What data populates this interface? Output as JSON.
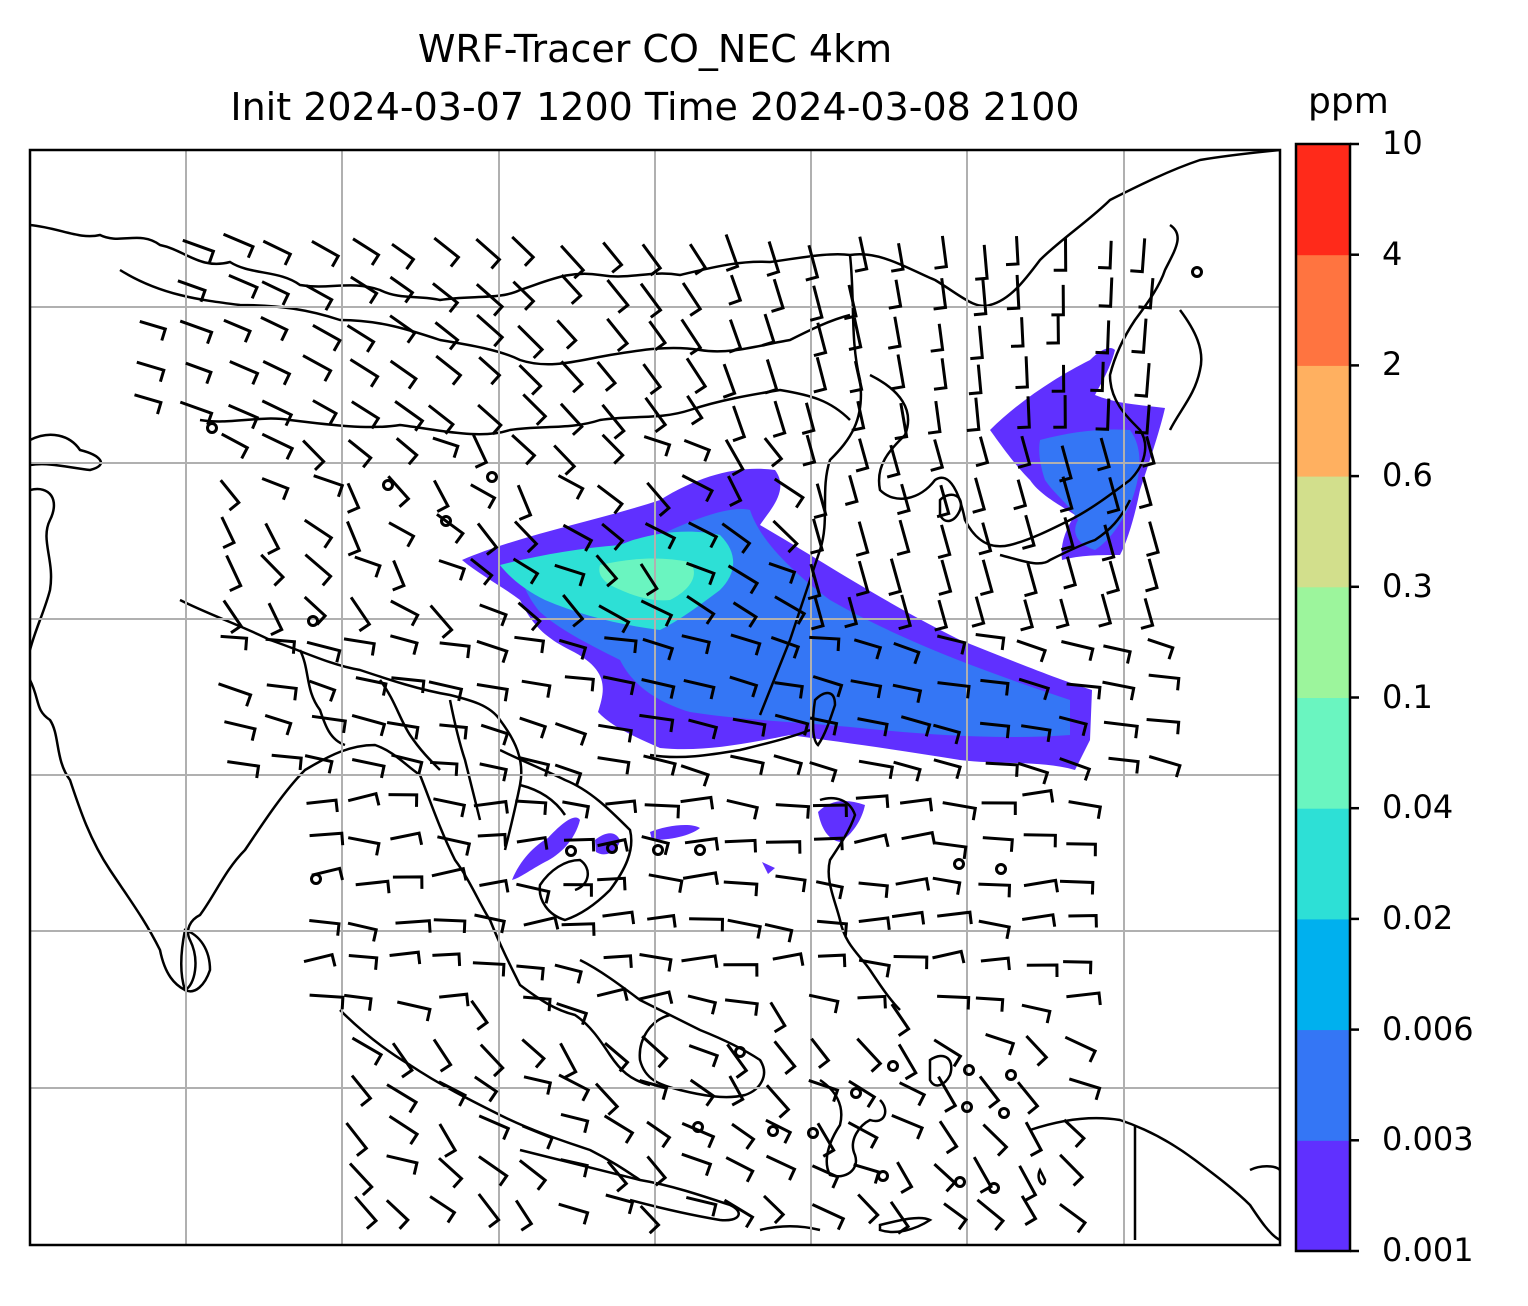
{
  "title_line1": "WRF-Tracer CO_NEC 4km",
  "title_line2": "Init 2024-03-07 1200 Time 2024-03-08 2100",
  "colorbar": {
    "unit": "ppm",
    "ticks": [
      "0.001",
      "0.003",
      "0.006",
      "0.02",
      "0.04",
      "0.1",
      "0.3",
      "0.6",
      "2",
      "4",
      "10"
    ],
    "colors": [
      "#6030ff",
      "#3476f5",
      "#00b0ee",
      "#2de0d6",
      "#6af5c0",
      "#9cf59c",
      "#d2df8c",
      "#ffb060",
      "#ff7440",
      "#ff2a1a"
    ]
  },
  "map": {
    "gridlines": true,
    "wind_barbs": true,
    "tracer_field": "CO_NEC"
  }
}
